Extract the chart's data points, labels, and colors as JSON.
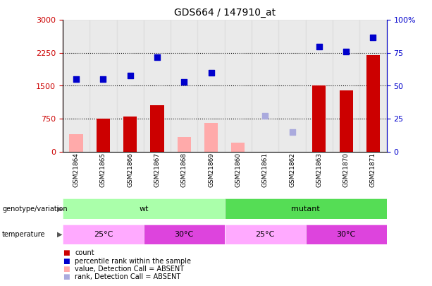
{
  "title": "GDS664 / 147910_at",
  "samples": [
    "GSM21864",
    "GSM21865",
    "GSM21866",
    "GSM21867",
    "GSM21868",
    "GSM21869",
    "GSM21860",
    "GSM21861",
    "GSM21862",
    "GSM21863",
    "GSM21870",
    "GSM21871"
  ],
  "count_values": [
    null,
    750,
    800,
    1050,
    null,
    null,
    null,
    null,
    null,
    1500,
    1400,
    2200
  ],
  "count_absent": [
    390,
    null,
    null,
    null,
    340,
    650,
    200,
    null,
    null,
    null,
    null,
    null
  ],
  "rank_values": [
    55,
    55,
    58,
    72,
    53,
    60,
    null,
    null,
    null,
    80,
    76,
    87
  ],
  "rank_absent": [
    null,
    null,
    null,
    null,
    null,
    null,
    null,
    27,
    15,
    null,
    null,
    null
  ],
  "ylim_left": [
    0,
    3000
  ],
  "ylim_right": [
    0,
    100
  ],
  "yticks_left": [
    0,
    750,
    1500,
    2250,
    3000
  ],
  "yticks_right": [
    0,
    25,
    50,
    75,
    100
  ],
  "ytick_labels_left": [
    "0",
    "750",
    "1500",
    "2250",
    "3000"
  ],
  "ytick_labels_right": [
    "0",
    "25",
    "50",
    "75",
    "100%"
  ],
  "hlines": [
    750,
    1500,
    2250
  ],
  "color_red": "#cc0000",
  "color_red_absent": "#ffaaaa",
  "color_blue": "#0000cc",
  "color_blue_absent": "#aaaadd",
  "color_wt": "#aaffaa",
  "color_mutant": "#55dd55",
  "color_temp25": "#ffaaff",
  "color_temp30": "#dd44dd",
  "color_col_bg": "#dddddd",
  "bar_width": 0.5
}
